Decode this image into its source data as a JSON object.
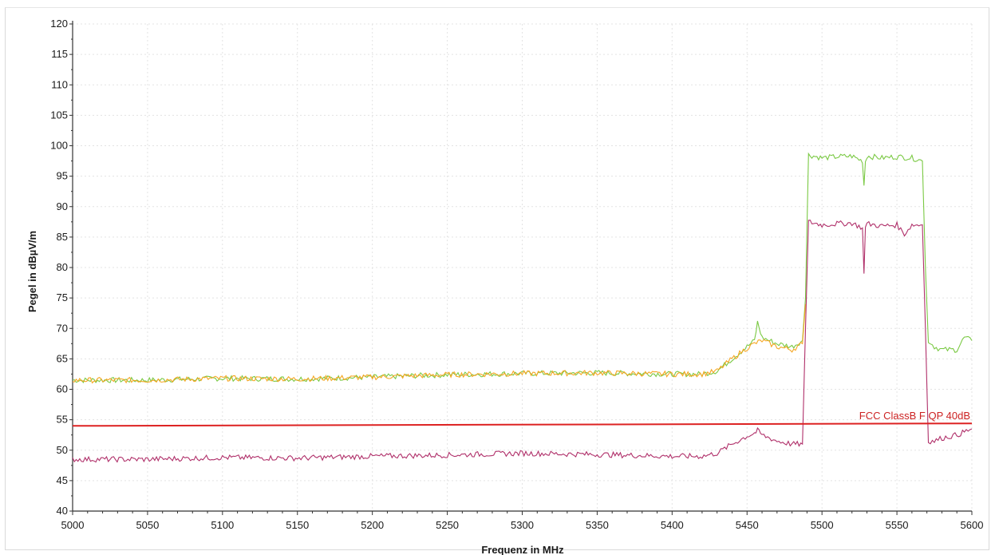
{
  "chart_data": {
    "type": "line",
    "xlabel": "Frequenz in MHz",
    "ylabel": "Pegel in dBµV/m",
    "xlim": [
      5000,
      5600
    ],
    "ylim": [
      40,
      120
    ],
    "x_ticks": [
      "5000",
      "5050",
      "5100",
      "5150",
      "5200",
      "5250",
      "5300",
      "5350",
      "5400",
      "5450",
      "5500",
      "5550",
      "5600"
    ],
    "y_ticks": [
      "40",
      "45",
      "50",
      "55",
      "60",
      "65",
      "70",
      "75",
      "80",
      "85",
      "90",
      "95",
      "100",
      "105",
      "110",
      "115",
      "120"
    ],
    "grid": true,
    "series": [
      {
        "color": "#7ac943",
        "x": [
          5000,
          5050,
          5100,
          5150,
          5200,
          5250,
          5300,
          5350,
          5400,
          5420,
          5430,
          5440,
          5450,
          5455,
          5457,
          5460,
          5470,
          5480,
          5487,
          5489,
          5491,
          5500,
          5510,
          5520,
          5527,
          5528,
          5529,
          5530,
          5540,
          5550,
          5560,
          5567,
          5569,
          5571,
          5575,
          5580,
          5590,
          5595,
          5600
        ],
        "y": [
          61.5,
          61.5,
          61.8,
          61.7,
          62.0,
          62.4,
          62.6,
          62.7,
          62.5,
          62.5,
          63.0,
          65.0,
          67.0,
          68.0,
          71.0,
          68.5,
          67.5,
          67.0,
          68.0,
          75.0,
          98.5,
          98.0,
          98.2,
          98.3,
          97.5,
          93.5,
          97.5,
          98.3,
          98.0,
          98.2,
          98.0,
          97.5,
          80.0,
          68.0,
          67.0,
          66.5,
          66.5,
          68.5,
          68.0
        ]
      },
      {
        "color": "#f5a623",
        "x": [
          5000,
          5050,
          5100,
          5150,
          5200,
          5250,
          5300,
          5350,
          5400,
          5420,
          5430,
          5440,
          5450,
          5455,
          5460,
          5470,
          5480,
          5487,
          5489
        ],
        "y": [
          61.5,
          61.5,
          61.8,
          61.7,
          62.0,
          62.4,
          62.6,
          62.7,
          62.5,
          62.5,
          63.0,
          65.0,
          66.8,
          67.5,
          68.0,
          67.0,
          66.5,
          67.5,
          74.0
        ]
      },
      {
        "color": "#b0306a",
        "x": [
          5000,
          5050,
          5100,
          5150,
          5200,
          5250,
          5300,
          5350,
          5400,
          5420,
          5430,
          5440,
          5450,
          5455,
          5457,
          5460,
          5470,
          5480,
          5487,
          5489,
          5491,
          5500,
          5510,
          5520,
          5527,
          5528,
          5529,
          5530,
          5540,
          5550,
          5555,
          5560,
          5567,
          5569,
          5571,
          5575,
          5580,
          5590,
          5595,
          5600
        ],
        "y": [
          48.5,
          48.5,
          48.8,
          48.7,
          49.0,
          49.2,
          49.5,
          49.3,
          49.0,
          49.0,
          49.5,
          51.0,
          52.3,
          52.8,
          53.2,
          52.5,
          51.5,
          51.0,
          51.0,
          70.0,
          87.5,
          87.0,
          87.2,
          87.3,
          86.5,
          79.0,
          86.5,
          87.2,
          86.8,
          87.0,
          85.5,
          87.0,
          87.0,
          70.0,
          51.5,
          51.5,
          52.0,
          52.5,
          53.0,
          53.5
        ]
      },
      {
        "name": "FCC ClassB F QP 40dB",
        "color": "#dd2222",
        "x": [
          5000,
          5600
        ],
        "y": [
          54.0,
          54.4
        ]
      }
    ],
    "annotations": [
      {
        "text": "FCC ClassB F QP 40dB",
        "series_index": 3
      }
    ]
  }
}
